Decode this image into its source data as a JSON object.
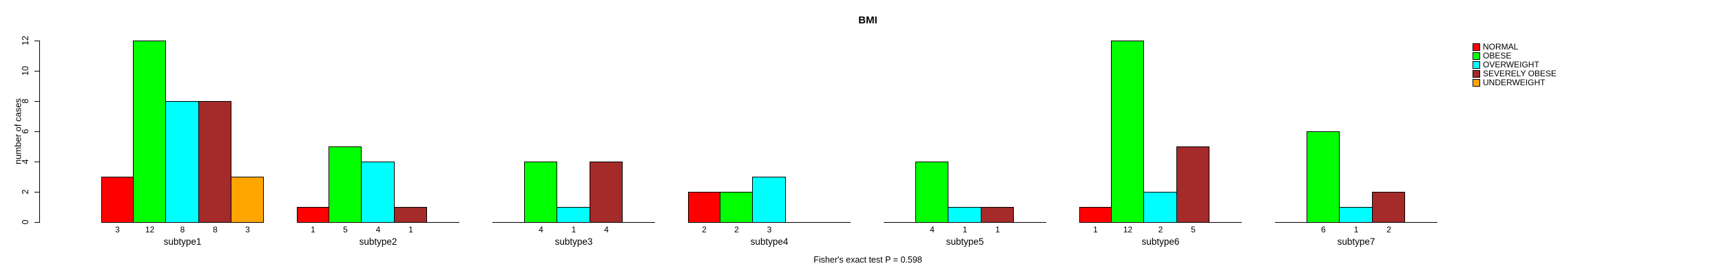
{
  "chart_data": {
    "type": "bar",
    "title": "BMI",
    "ylabel": "number of cases",
    "ylim": [
      0,
      12
    ],
    "yticks": [
      0,
      2,
      4,
      6,
      8,
      10,
      12
    ],
    "grid": false,
    "legend_position": "top-right",
    "categories": [
      "NORMAL",
      "OBESE",
      "OVERWEIGHT",
      "SEVERELY OBESE",
      "UNDERWEIGHT"
    ],
    "series_colors": [
      "#FF0000",
      "#00FF00",
      "#00FFFF",
      "#A52A2A",
      "#FFA500"
    ],
    "bar_labels_shown_only_when_nonzero": true,
    "panels": [
      {
        "label": "subtype1",
        "values": [
          3,
          12,
          8,
          8,
          3
        ]
      },
      {
        "label": "subtype2",
        "values": [
          1,
          5,
          4,
          1,
          0
        ]
      },
      {
        "label": "subtype3",
        "values": [
          0,
          4,
          1,
          4,
          0
        ]
      },
      {
        "label": "subtype4",
        "values": [
          2,
          2,
          3,
          0,
          0
        ]
      },
      {
        "label": "subtype5",
        "values": [
          0,
          4,
          1,
          1,
          0
        ]
      },
      {
        "label": "subtype6",
        "values": [
          1,
          12,
          2,
          5,
          0
        ]
      },
      {
        "label": "subtype7",
        "values": [
          0,
          6,
          1,
          2,
          0
        ]
      }
    ],
    "legend": [
      {
        "label": "NORMAL",
        "color": "#FF0000"
      },
      {
        "label": "OBESE",
        "color": "#00FF00"
      },
      {
        "label": "OVERWEIGHT",
        "color": "#00FFFF"
      },
      {
        "label": "SEVERELY OBESE",
        "color": "#A52A2A"
      },
      {
        "label": "UNDERWEIGHT",
        "color": "#FFA500"
      }
    ],
    "footnote": "Fisher's exact test P = 0.598"
  }
}
